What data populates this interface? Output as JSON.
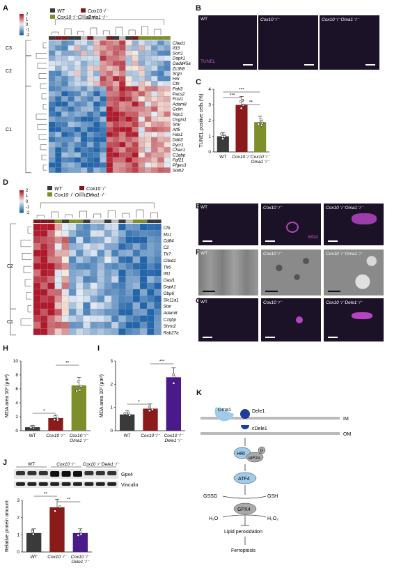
{
  "panel_letters": {
    "a": "A",
    "b": "B",
    "c": "C",
    "d": "D",
    "e": "E",
    "f": "F",
    "g": "G",
    "h": "H",
    "i": "I",
    "j": "J",
    "k": "K"
  },
  "heatmapA": {
    "legend": [
      {
        "name": "WT",
        "color": "#3a3a3a"
      },
      {
        "name": "Cox10⁻/⁻",
        "color": "#7a1a1a"
      },
      {
        "name": "Cox10⁻/⁻Oma1⁻/⁻",
        "color": "#7d8f2b"
      },
      {
        "name": "Oma1⁻/⁻",
        "color": "#bdbdbd"
      }
    ],
    "scale_ticks": [
      "2",
      "1",
      "0",
      "-1",
      "-2"
    ],
    "clusters": [
      "C3",
      "C2",
      "C1"
    ],
    "genes": [
      "Cited1",
      "Il33",
      "Sort1",
      "Dapk1",
      "Gadd45a",
      "Zc3h8",
      "Srgn",
      "Hrk",
      "Cth",
      "Pak3",
      "Pacs2",
      "Fosl1",
      "Adam8",
      "Gclm",
      "Nqo1",
      "Osgin1",
      "Star",
      "Atf5",
      "Hax1",
      "Ddit3",
      "Pycr1",
      "Chac1",
      "C1qbp",
      "Fgf21",
      "Pfges3",
      "Siah2"
    ]
  },
  "panelB": {
    "labels": [
      "WT",
      "Cox10⁻/⁻",
      "Cox10⁻/⁻Oma1⁻/⁻"
    ],
    "stain": "TUNEL"
  },
  "panelC": {
    "ylabel": "TUNEL positive cells (%)",
    "yticks": [
      "0",
      "1",
      "2",
      "3",
      "4"
    ],
    "groups": [
      {
        "name": "WT",
        "value": 1.0,
        "color": "#3a3a3a"
      },
      {
        "name": "Cox10⁻/⁻",
        "value": 3.0,
        "color": "#8b1a1a"
      },
      {
        "name": "Cox10⁻/⁻ Oma1⁻/⁻",
        "value": 1.9,
        "color": "#7d8f2b"
      }
    ],
    "sig": [
      "***",
      "***",
      "**"
    ]
  },
  "heatmapD": {
    "legend": [
      {
        "name": "WT",
        "color": "#3a3a3a"
      },
      {
        "name": "Cox10⁻/⁻",
        "color": "#7a1a1a"
      },
      {
        "name": "Cox10⁻/⁻Oma1⁻/⁻",
        "color": "#7d8f2b"
      },
      {
        "name": "Oma1⁻/⁻",
        "color": "#bdbdbd"
      }
    ],
    "scale_ticks": [
      "2",
      "1",
      "0",
      "-1",
      "-2"
    ],
    "clusters": [
      "C2",
      "C1"
    ],
    "genes": [
      "Cfb",
      "Mx1",
      "Cd84",
      "C2",
      "Tlr7",
      "Cited1",
      "Tlr6",
      "Ifit1",
      "Oasl1",
      "Dapk1",
      "Gbp6",
      "Slc11a1",
      "Star",
      "Adam8",
      "C1qbp",
      "Shmt2",
      "Rab27a"
    ]
  },
  "panelE": {
    "labels": [
      "WT",
      "Cox10⁻/⁻",
      "Cox10⁻/⁻Oma1⁻/⁻"
    ],
    "stain": "MDA"
  },
  "panelF": {
    "labels": [
      "WT",
      "Cox10⁻/⁻",
      "Cox10⁻/⁻Oma1⁻/⁻"
    ]
  },
  "panelG": {
    "labels": [
      "WT",
      "Cox10⁻/⁻",
      "Cox10⁻/⁻Dele1⁻/⁻"
    ]
  },
  "panelH": {
    "ylabel": "MDA area 10³ (μm²)",
    "yticks": [
      "0",
      "2",
      "4",
      "6",
      "8",
      "10"
    ],
    "groups": [
      {
        "name": "WT",
        "value": 0.5,
        "color": "#3a3a3a"
      },
      {
        "name": "Cox10⁻/⁻",
        "value": 1.8,
        "color": "#8b1a1a"
      },
      {
        "name": "Cox10⁻/⁻ Oma1⁻/⁻",
        "value": 6.5,
        "color": "#7d8f2b"
      }
    ],
    "sig": [
      "*",
      "**"
    ]
  },
  "panelI": {
    "ylabel": "MDA area 10³ (μm²)",
    "yticks": [
      "0",
      "1",
      "2",
      "3"
    ],
    "groups": [
      {
        "name": "WT",
        "value": 0.7,
        "color": "#3a3a3a"
      },
      {
        "name": "Cox10⁻/⁻",
        "value": 0.95,
        "color": "#8b1a1a"
      },
      {
        "name": "Cox10⁻/⁻ Dele1⁻/⁻",
        "value": 2.3,
        "color": "#4a1a8a"
      }
    ],
    "sig": [
      "*",
      "***"
    ]
  },
  "panelJ": {
    "blot_groups": [
      "WT",
      "Cox10⁻/⁻",
      "Cox10⁻/⁻Dele1⁻/⁻"
    ],
    "bands": [
      "Gpx4",
      "Vinculin"
    ],
    "ylabel": "Relative protein amount",
    "yticks": [
      "0",
      "1",
      "2",
      "3"
    ],
    "groups": [
      {
        "name": "WT",
        "value": 1.1,
        "color": "#3a3a3a"
      },
      {
        "name": "Cox10⁻/⁻",
        "value": 2.6,
        "color": "#8b1a1a"
      },
      {
        "name": "Cox10⁻/⁻ Dele1⁻/⁻",
        "value": 1.1,
        "color": "#4a1a8a"
      }
    ],
    "sig": [
      "**",
      "**"
    ]
  },
  "panelK": {
    "oma1": "Oma1",
    "dele1": "Dele1",
    "im": "IM",
    "om": "OM",
    "cdele1": "cDele1",
    "hri": "HRI",
    "eif2a": "eIF2α",
    "p": "P",
    "atf4": "ATF4",
    "gssg": "GSSG",
    "gsh": "GSH",
    "gpx4": "GPX4",
    "h2o": "H₂O",
    "h2o2": "H₂O₂",
    "lipid": "Lipid peroxidation",
    "ferro": "Ferroptosis"
  }
}
